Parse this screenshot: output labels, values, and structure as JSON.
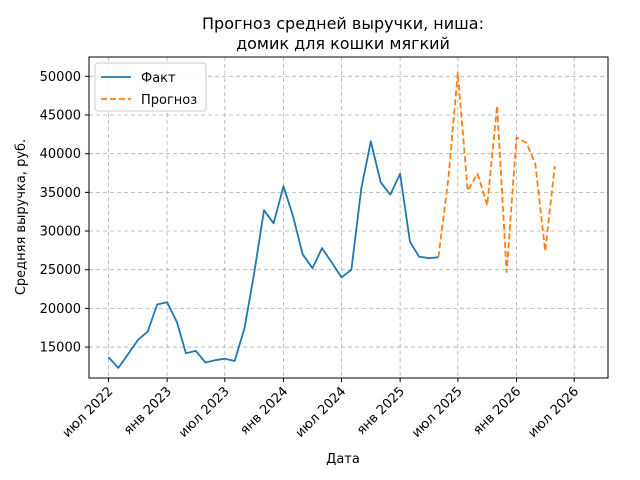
{
  "chart_data": {
    "type": "line",
    "title": [
      "Прогноз средней выручки, ниша:",
      "домик для кошки мягкий"
    ],
    "xlabel": "Дата",
    "ylabel": "Средняя выручка, руб.",
    "x_axis_type": "date",
    "xlim": [
      "2022-05-01",
      "2026-10-15"
    ],
    "ylim": [
      11000,
      52500
    ],
    "grid": true,
    "legend_position": "top-left",
    "x_ticks": [
      {
        "date": "2022-07-01",
        "label": "июл 2022"
      },
      {
        "date": "2023-01-01",
        "label": "янв 2023"
      },
      {
        "date": "2023-07-01",
        "label": "июл 2023"
      },
      {
        "date": "2024-01-01",
        "label": "янв 2024"
      },
      {
        "date": "2024-07-01",
        "label": "июл 2024"
      },
      {
        "date": "2025-01-01",
        "label": "янв 2025"
      },
      {
        "date": "2025-07-01",
        "label": "июл 2025"
      },
      {
        "date": "2026-01-01",
        "label": "янв 2026"
      },
      {
        "date": "2026-07-01",
        "label": "июл 2026"
      }
    ],
    "y_ticks": [
      15000,
      20000,
      25000,
      30000,
      35000,
      40000,
      45000,
      50000
    ],
    "series": [
      {
        "name": "Факт",
        "color": "#1f77b4",
        "style": "solid",
        "x": [
          "2022-07-01",
          "2022-08-01",
          "2022-09-01",
          "2022-10-01",
          "2022-11-01",
          "2022-12-01",
          "2023-01-01",
          "2023-02-01",
          "2023-03-01",
          "2023-04-01",
          "2023-05-01",
          "2023-06-01",
          "2023-07-01",
          "2023-08-01",
          "2023-09-01",
          "2023-10-01",
          "2023-11-01",
          "2023-12-01",
          "2024-01-01",
          "2024-02-01",
          "2024-03-01",
          "2024-04-01",
          "2024-05-01",
          "2024-06-01",
          "2024-07-01",
          "2024-08-01",
          "2024-09-01",
          "2024-10-01",
          "2024-11-01",
          "2024-12-01",
          "2025-01-01",
          "2025-02-01",
          "2025-03-01",
          "2025-04-01",
          "2025-05-01"
        ],
        "values": [
          13700,
          12300,
          14100,
          15900,
          17000,
          20500,
          20800,
          18200,
          14200,
          14500,
          13000,
          13300,
          13500,
          13200,
          17500,
          24500,
          32700,
          31000,
          35800,
          31800,
          27000,
          25200,
          27800,
          25900,
          24000,
          25000,
          35500,
          41600,
          36300,
          34700,
          37400,
          28600,
          26700,
          26500,
          26600
        ]
      },
      {
        "name": "Прогноз",
        "color": "#ff7f0e",
        "style": "dashed",
        "x": [
          "2025-05-01",
          "2025-06-01",
          "2025-07-01",
          "2025-08-01",
          "2025-09-01",
          "2025-10-01",
          "2025-11-01",
          "2025-12-01",
          "2026-01-01",
          "2026-02-01",
          "2026-03-01",
          "2026-04-01",
          "2026-05-01"
        ],
        "values": [
          26600,
          36700,
          50500,
          35200,
          37400,
          33300,
          46200,
          24700,
          42100,
          41400,
          38700,
          27400,
          38400
        ]
      }
    ]
  }
}
